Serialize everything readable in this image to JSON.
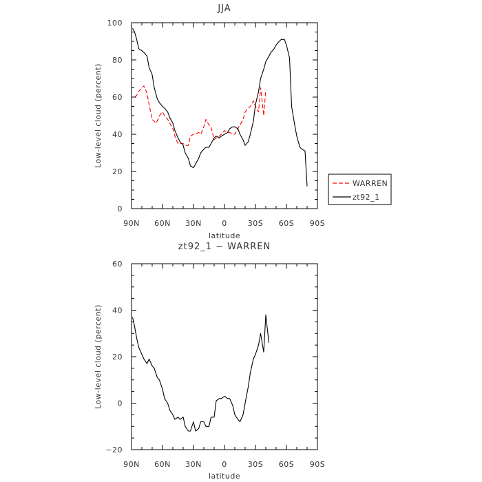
{
  "chart_data": [
    {
      "type": "line",
      "title": "JJA",
      "xlabel": "latitude",
      "ylabel": "Low-level cloud (percent)",
      "x_ticks": [
        "90N",
        "60N",
        "30N",
        "0",
        "30S",
        "60S",
        "90S"
      ],
      "y_ticks": [
        "0",
        "20",
        "40",
        "60",
        "80",
        "100"
      ],
      "xlim": [
        -90,
        90
      ],
      "ylim": [
        0,
        100
      ],
      "legend_placement": "right",
      "series": [
        {
          "name": "WARREN",
          "color": "#ff0000",
          "dash": "dashed",
          "x": [
            -87,
            -85,
            -83,
            -80,
            -78,
            -75,
            -73,
            -70,
            -68,
            -66,
            -63,
            -60,
            -58,
            -55,
            -53,
            -50,
            -48,
            -45,
            -43,
            -40,
            -38,
            -35,
            -33,
            -30,
            -28,
            -25,
            -23,
            -20,
            -18,
            -15,
            -13,
            -10,
            -8,
            -5,
            -3,
            0,
            3,
            5,
            8,
            10,
            13,
            15,
            18,
            20,
            23,
            25,
            28,
            30,
            33,
            35,
            38,
            40,
            43,
            45,
            48,
            50,
            53,
            55,
            58
          ],
          "y": [
            60,
            61,
            63,
            65,
            66,
            62,
            56,
            48,
            47,
            46,
            50,
            52,
            50,
            48,
            46,
            43,
            39,
            35,
            35,
            35,
            34,
            34,
            39,
            40,
            40,
            41,
            40,
            44,
            48,
            45,
            44,
            37,
            38,
            39,
            40,
            42,
            41,
            41,
            40,
            40,
            43,
            45,
            48,
            52,
            54,
            55,
            58,
            55,
            52,
            65,
            50,
            64,
            null,
            null,
            null,
            null,
            null,
            null,
            null
          ]
        },
        {
          "name": "zt92_1",
          "color": "#000000",
          "dash": "solid",
          "x": [
            -89,
            -87,
            -85,
            -83,
            -80,
            -78,
            -75,
            -73,
            -70,
            -68,
            -65,
            -63,
            -60,
            -58,
            -55,
            -53,
            -50,
            -48,
            -45,
            -43,
            -40,
            -38,
            -35,
            -33,
            -30,
            -28,
            -25,
            -23,
            -20,
            -18,
            -15,
            -13,
            -10,
            -8,
            -5,
            -3,
            0,
            3,
            5,
            8,
            10,
            13,
            15,
            18,
            20,
            23,
            25,
            28,
            30,
            33,
            35,
            38,
            40,
            43,
            45,
            48,
            50,
            53,
            55,
            58,
            60,
            63,
            65,
            68,
            70,
            73,
            75,
            78,
            80,
            83,
            85,
            88
          ],
          "y": [
            97,
            95,
            91,
            86,
            85,
            84,
            82,
            76,
            72,
            65,
            59,
            57,
            55,
            54,
            52,
            49,
            46,
            42,
            38,
            36,
            34,
            30,
            27,
            23,
            22,
            24,
            27,
            30,
            32,
            33,
            33,
            35,
            38,
            39,
            38,
            39,
            40,
            41,
            43,
            44,
            44,
            43,
            40,
            37,
            34,
            36,
            40,
            47,
            56,
            63,
            70,
            75,
            79,
            82,
            84,
            86,
            88,
            90,
            91,
            91,
            88,
            81,
            55,
            45,
            39,
            33,
            32,
            31,
            12,
            null,
            null,
            null
          ]
        }
      ]
    },
    {
      "type": "line",
      "title": "zt92_1 − WARREN",
      "xlabel": "latitude",
      "ylabel": "Low-level cloud (percent)",
      "x_ticks": [
        "90N",
        "60N",
        "30N",
        "0",
        "30S",
        "60S",
        "90S"
      ],
      "y_ticks": [
        "−20",
        "0",
        "20",
        "40",
        "60"
      ],
      "xlim": [
        -90,
        90
      ],
      "ylim": [
        -20,
        60
      ],
      "series": [
        {
          "name": "",
          "color": "#000000",
          "dash": "solid",
          "x": [
            -89,
            -87,
            -85,
            -83,
            -80,
            -78,
            -75,
            -73,
            -70,
            -68,
            -65,
            -63,
            -60,
            -58,
            -55,
            -53,
            -50,
            -48,
            -45,
            -43,
            -40,
            -38,
            -35,
            -33,
            -30,
            -28,
            -25,
            -23,
            -20,
            -18,
            -15,
            -13,
            -10,
            -8,
            -5,
            -3,
            0,
            3,
            5,
            8,
            10,
            13,
            15,
            18,
            20,
            23,
            25,
            28,
            30,
            33,
            35,
            38,
            40,
            43,
            45,
            48,
            50,
            53,
            55,
            58
          ],
          "y": [
            37,
            33,
            28,
            24,
            21,
            19,
            17,
            19,
            16,
            15,
            11,
            10,
            6,
            2,
            0,
            -3,
            -5,
            -7,
            -6,
            -7,
            -6,
            -10,
            -12,
            -12,
            -8,
            -12,
            -11,
            -8,
            -8,
            -10,
            -10,
            -6,
            -6,
            1,
            2,
            2,
            3,
            2,
            2,
            -1,
            -5,
            -7,
            -8,
            -5,
            0,
            7,
            13,
            19,
            21,
            25,
            30,
            22,
            38,
            26,
            null,
            null,
            null,
            null,
            null,
            null
          ]
        }
      ]
    }
  ],
  "legend": {
    "items": [
      {
        "label": "WARREN",
        "color": "#ff0000",
        "dash": "dashed"
      },
      {
        "label": "zt92_1",
        "color": "#000000",
        "dash": "solid"
      }
    ]
  }
}
